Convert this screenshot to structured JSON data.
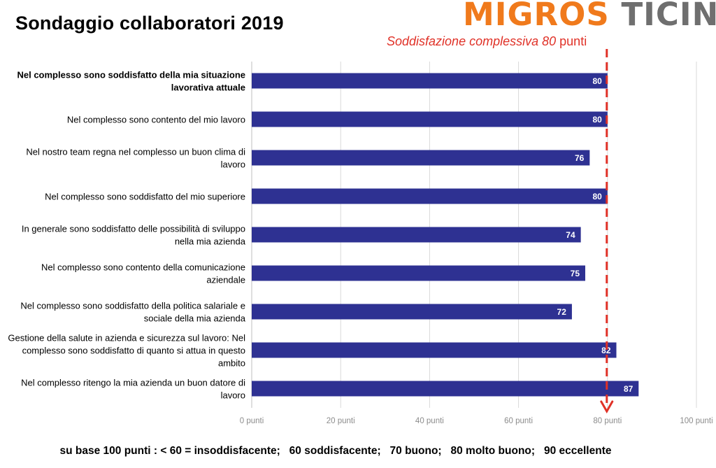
{
  "title": "Sondaggio collaboratori 2019",
  "logo": {
    "word1": "MIGROS",
    "word2": "TICINO",
    "color1": "#f07a1c",
    "color2": "#6f6f6f"
  },
  "overall": {
    "prefix": "Soddisfazione complessiva ",
    "value": "80",
    "unit": " punti",
    "color": "#e03127"
  },
  "footer": "su base 100 punti : < 60 = insoddisfacente;   60 soddisfacente;   70 buono;   80 molto buono;   90 eccellente",
  "chart_data": {
    "type": "bar",
    "orientation": "horizontal",
    "categories": [
      [
        "Nel complesso sono soddisfatto della mia situazione",
        "lavorativa attuale"
      ],
      [
        "Nel complesso sono contento del mio lavoro"
      ],
      [
        "Nel nostro team regna nel complesso un buon clima di",
        "lavoro"
      ],
      [
        "Nel complesso sono soddisfatto del mio superiore"
      ],
      [
        "In generale sono soddisfatto delle possibilità di sviluppo",
        "nella mia azienda"
      ],
      [
        "Nel complesso sono contento della comunicazione",
        "aziendale"
      ],
      [
        "Nel complesso sono soddisfatto della politica salariale e",
        "sociale della mia azienda"
      ],
      [
        "Gestione della salute in azienda e sicurezza sul lavoro: Nel",
        "complesso sono soddisfatto di quanto si attua in questo",
        "ambito"
      ],
      [
        "Nel complesso ritengo la mia azienda un buon datore di",
        "lavoro"
      ]
    ],
    "bold_first_category": true,
    "values": [
      80,
      80,
      76,
      80,
      74,
      75,
      72,
      82,
      87
    ],
    "data_labels": [
      "80",
      "80",
      "76",
      "80",
      "74",
      "75",
      "72",
      "82",
      "87"
    ],
    "xlim": [
      0,
      100
    ],
    "xticks": [
      0,
      20,
      40,
      60,
      80,
      100
    ],
    "xtick_labels": [
      "0 punti",
      "20 punti",
      "40 punti",
      "60 punti",
      "80 punti",
      "100 punti"
    ],
    "grid": true,
    "reference_line": {
      "value": 80,
      "style": "dashed-arrow"
    },
    "bar_color": "#2e3192",
    "label_color": "#ffffff",
    "title": "",
    "xlabel": "",
    "ylabel": ""
  }
}
